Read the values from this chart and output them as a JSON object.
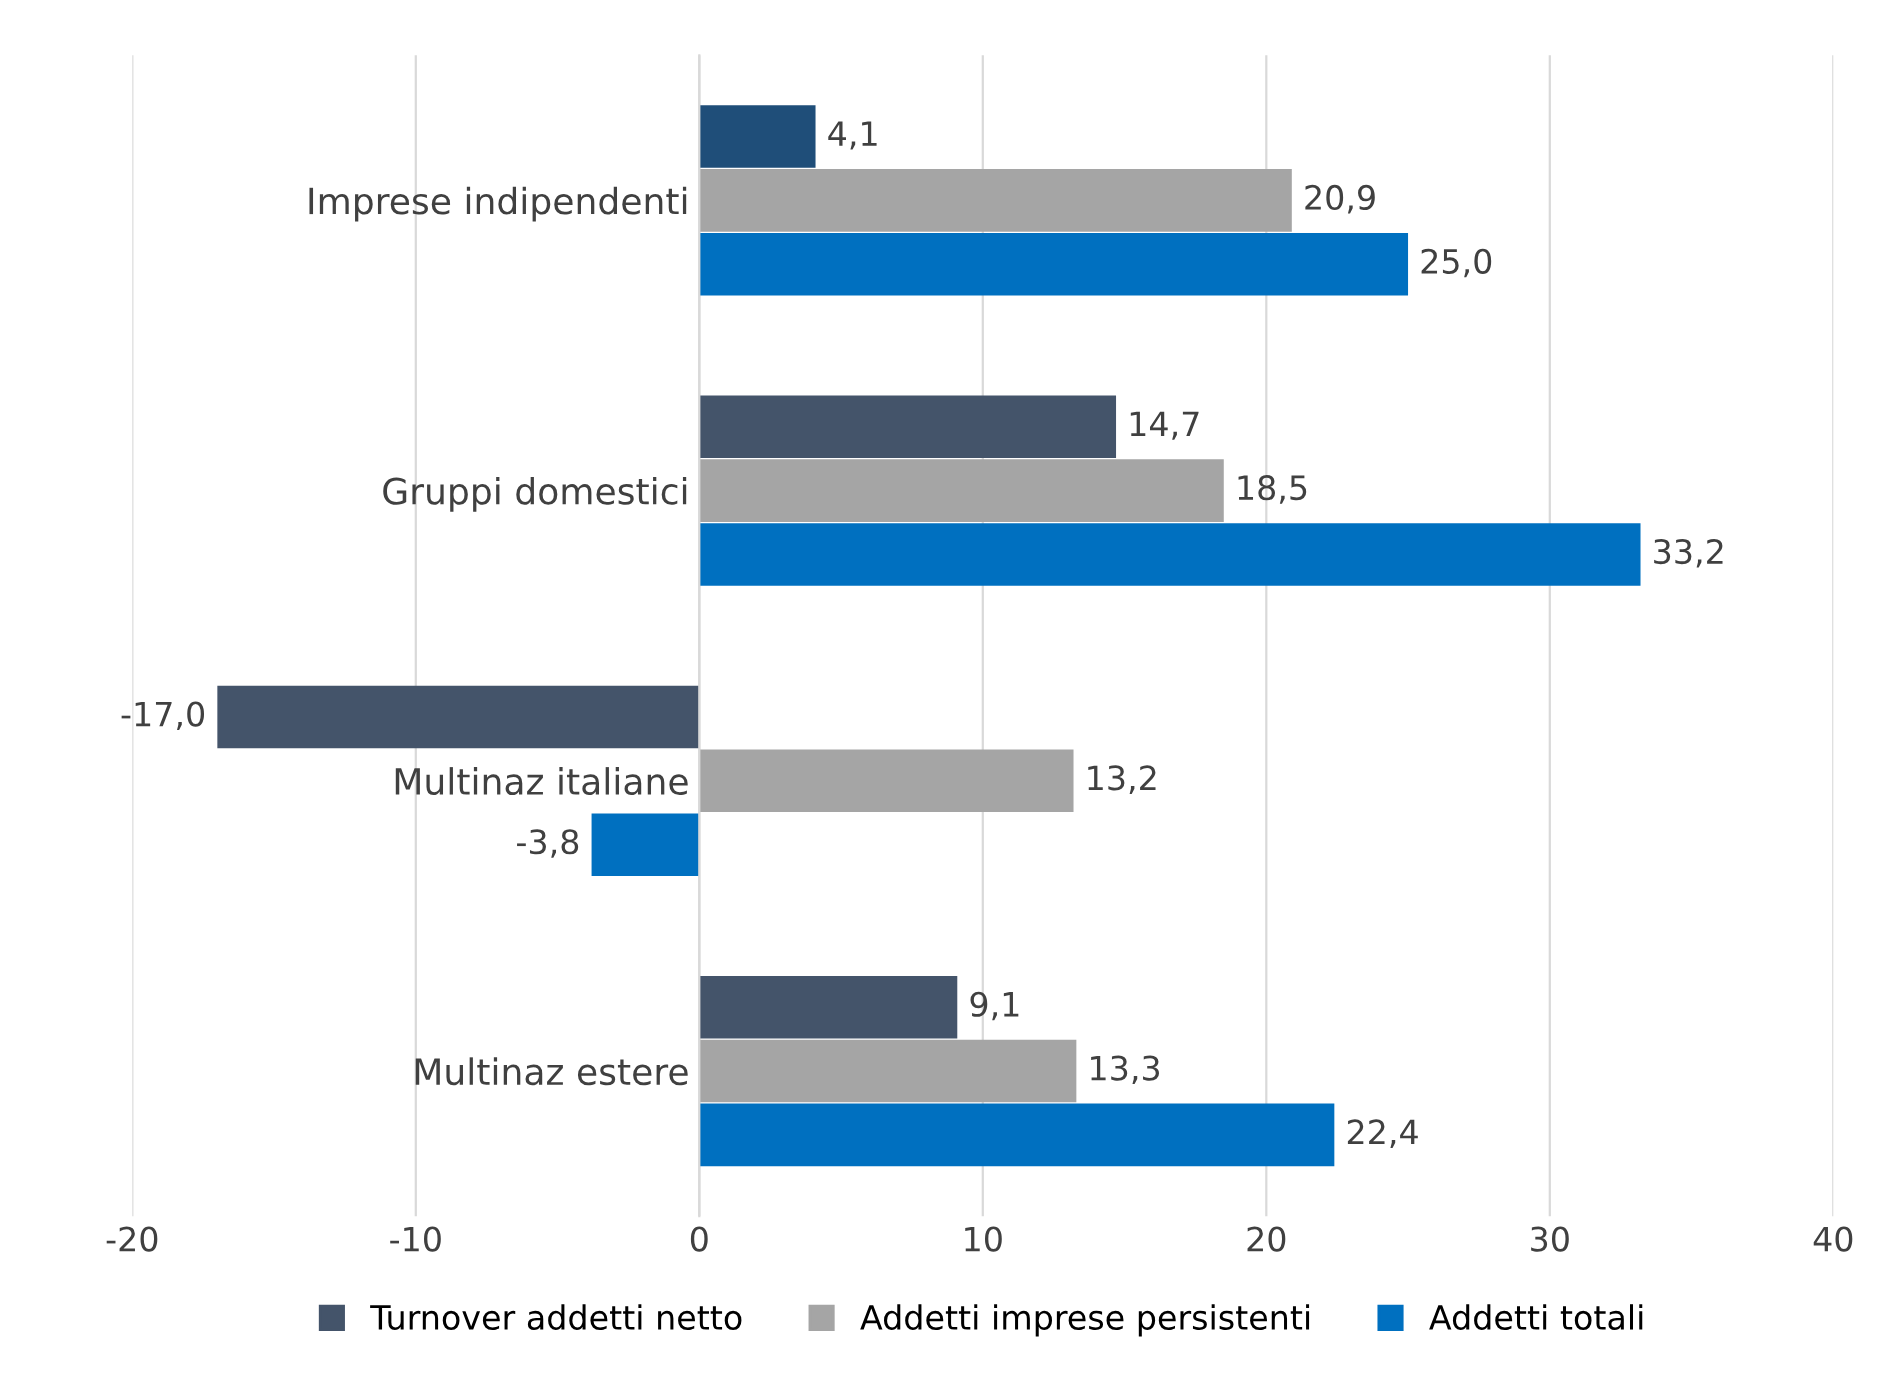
{
  "chart_data": {
    "type": "bar",
    "orientation": "horizontal",
    "categories": [
      "Imprese indipendenti",
      "Gruppi domestici",
      "Multinaz italiane",
      "Multinaz estere"
    ],
    "series": [
      {
        "name": "Turnover addetti netto",
        "color": "#44546a",
        "colors": [
          "#1f4e79",
          "#44546a",
          "#44546a",
          "#44546a"
        ],
        "values": [
          4.1,
          14.7,
          -17.0,
          9.1
        ],
        "value_labels": [
          "4,1",
          "14,7",
          "-17,0",
          "9,1"
        ]
      },
      {
        "name": "Addetti imprese persistenti",
        "color": "#a5a5a5",
        "values": [
          20.9,
          18.5,
          13.2,
          13.3
        ],
        "value_labels": [
          "20,9",
          "18,5",
          "13,2",
          "13,3"
        ]
      },
      {
        "name": "Addetti totali",
        "color": "#0070c0",
        "values": [
          25.0,
          33.2,
          -3.8,
          22.4
        ],
        "value_labels": [
          "25,0",
          "33,2",
          "-3,8",
          "22,4"
        ]
      }
    ],
    "xlim": [
      -20,
      40
    ],
    "xticks": [
      -20,
      -10,
      0,
      10,
      20,
      30,
      40
    ],
    "grid": "x",
    "legend": "bottom"
  }
}
